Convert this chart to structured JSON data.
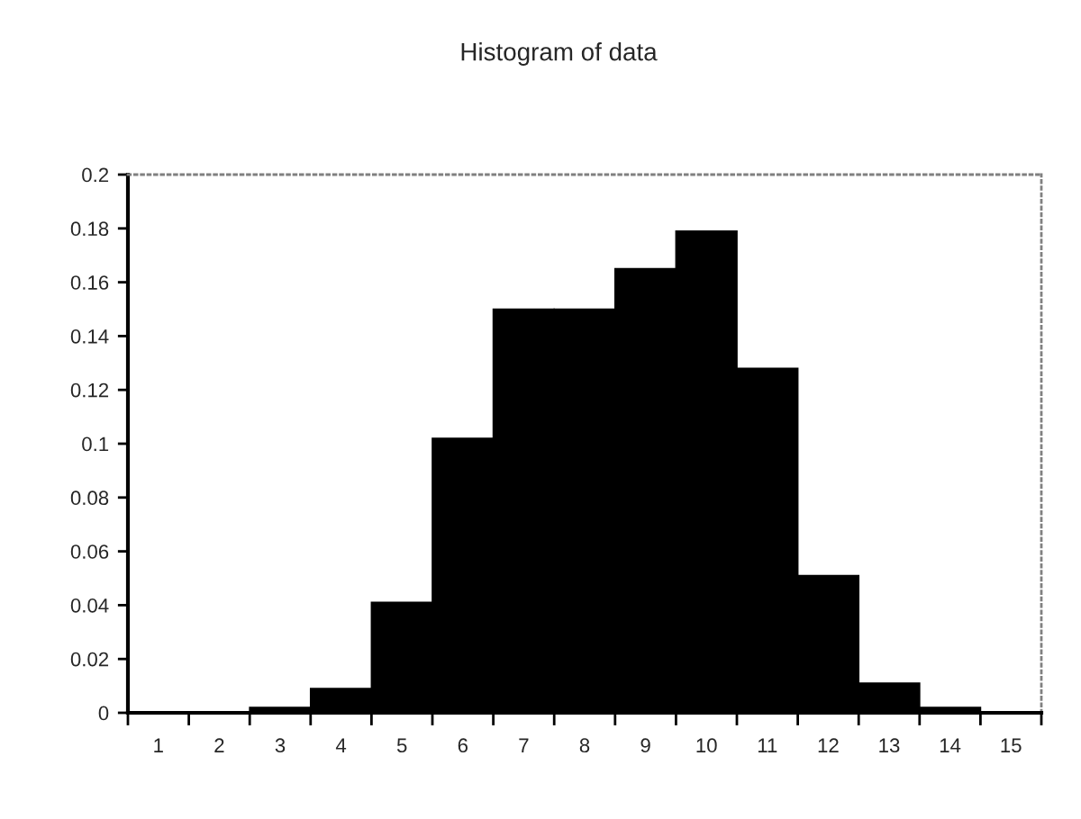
{
  "chart_data": {
    "type": "bar",
    "title": "Histogram of data",
    "categories": [
      "1",
      "2",
      "3",
      "4",
      "5",
      "6",
      "7",
      "8",
      "9",
      "10",
      "11",
      "12",
      "13",
      "14",
      "15"
    ],
    "values": [
      0,
      0,
      0.002,
      0.009,
      0.041,
      0.102,
      0.15,
      0.15,
      0.165,
      0.179,
      0.128,
      0.051,
      0.011,
      0.002,
      0
    ],
    "color": "#000000",
    "ylim": [
      0,
      0.2
    ],
    "yticks": [
      0,
      0.02,
      0.04,
      0.06,
      0.08,
      0.1,
      0.12,
      0.14,
      0.16,
      0.18,
      0.2
    ],
    "grid": false
  }
}
